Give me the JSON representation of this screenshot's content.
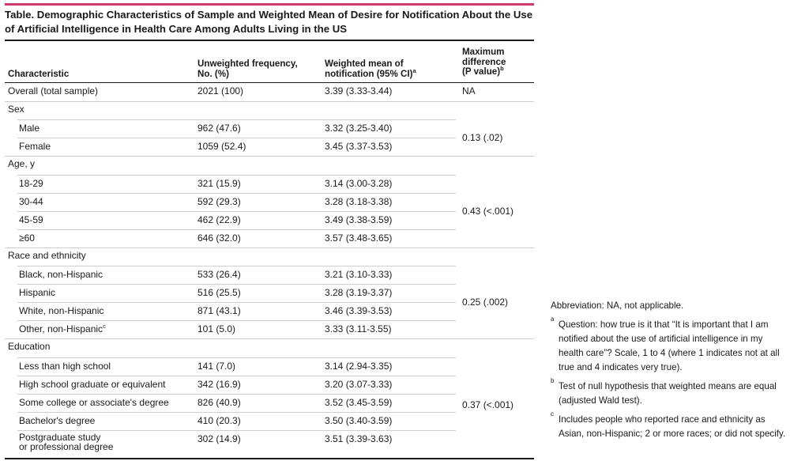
{
  "title": "Table. Demographic Characteristics of Sample and Weighted Mean of Desire for Notification About the Use of Artificial Intelligence in Health Care Among Adults Living in the US",
  "columns": {
    "characteristic": "Characteristic",
    "frequency_line1": "Unweighted frequency,",
    "frequency_line2": "No. (%)",
    "mean_line1": "Weighted mean of",
    "mean_line2": "notification (95% CI)",
    "mean_sup": "a",
    "diff_line1": "Maximum",
    "diff_line2": "difference",
    "diff_line3": "(P value)",
    "diff_sup": "b"
  },
  "overall": {
    "label": "Overall (total sample)",
    "freq": "2021 (100)",
    "mean": "3.39 (3.33-3.44)",
    "diff": "NA"
  },
  "groups": [
    {
      "label": "Sex",
      "diff": "0.13 (.02)",
      "rows": [
        {
          "label": "Male",
          "freq": "962 (47.6)",
          "mean": "3.32 (3.25-3.40)"
        },
        {
          "label": "Female",
          "freq": "1059 (52.4)",
          "mean": "3.45 (3.37-3.53)"
        }
      ]
    },
    {
      "label": "Age, y",
      "diff": "0.43 (<.001)",
      "rows": [
        {
          "label": "18-29",
          "freq": "321 (15.9)",
          "mean": "3.14 (3.00-3.28)"
        },
        {
          "label": "30-44",
          "freq": "592 (29.3)",
          "mean": "3.28 (3.18-3.38)"
        },
        {
          "label": "45-59",
          "freq": "462 (22.9)",
          "mean": "3.49 (3.38-3.59)"
        },
        {
          "label": "≥60",
          "freq": "646 (32.0)",
          "mean": "3.57 (3.48-3.65)"
        }
      ]
    },
    {
      "label": "Race and ethnicity",
      "diff": "0.25 (.002)",
      "rows": [
        {
          "label": "Black, non-Hispanic",
          "freq": "533 (26.4)",
          "mean": "3.21 (3.10-3.33)"
        },
        {
          "label": "Hispanic",
          "freq": "516 (25.5)",
          "mean": "3.28 (3.19-3.37)"
        },
        {
          "label": "White, non-Hispanic",
          "freq": "871 (43.1)",
          "mean": "3.46 (3.39-3.53)"
        },
        {
          "label": "Other, non-Hispanic",
          "sup": "c",
          "freq": "101 (5.0)",
          "mean": "3.33 (3.11-3.55)"
        }
      ]
    },
    {
      "label": "Education",
      "diff": "0.37 (<.001)",
      "rows": [
        {
          "label": "Less than high school",
          "freq": "141 (7.0)",
          "mean": "3.14 (2.94-3.35)"
        },
        {
          "label": "High school graduate or equivalent",
          "freq": "342 (16.9)",
          "mean": "3.20 (3.07-3.33)"
        },
        {
          "label": "Some college or associate's degree",
          "freq": "826 (40.9)",
          "mean": "3.52 (3.45-3.59)"
        },
        {
          "label": "Bachelor's degree",
          "freq": "410 (20.3)",
          "mean": "3.50 (3.40-3.59)"
        },
        {
          "label": "Postgraduate study",
          "label2": "or professional degree",
          "freq": "302 (14.9)",
          "mean": "3.51 (3.39-3.63)"
        }
      ]
    }
  ],
  "footnotes": {
    "abbreviation": "Abbreviation: NA, not applicable.",
    "a_mark": "a",
    "a": "Question: how true is it that “It is important that I am notified about the use of artificial intelligence in my health care”? Scale, 1 to 4 (where 1 indicates not at all true and 4 indicates very true).",
    "b_mark": "b",
    "b": "Test of null hypothesis that weighted means are equal (adjusted Wald test).",
    "c_mark": "c",
    "c": "Includes people who reported race and ethnicity as Asian, non-Hispanic; 2 or more races; or did not specify."
  }
}
